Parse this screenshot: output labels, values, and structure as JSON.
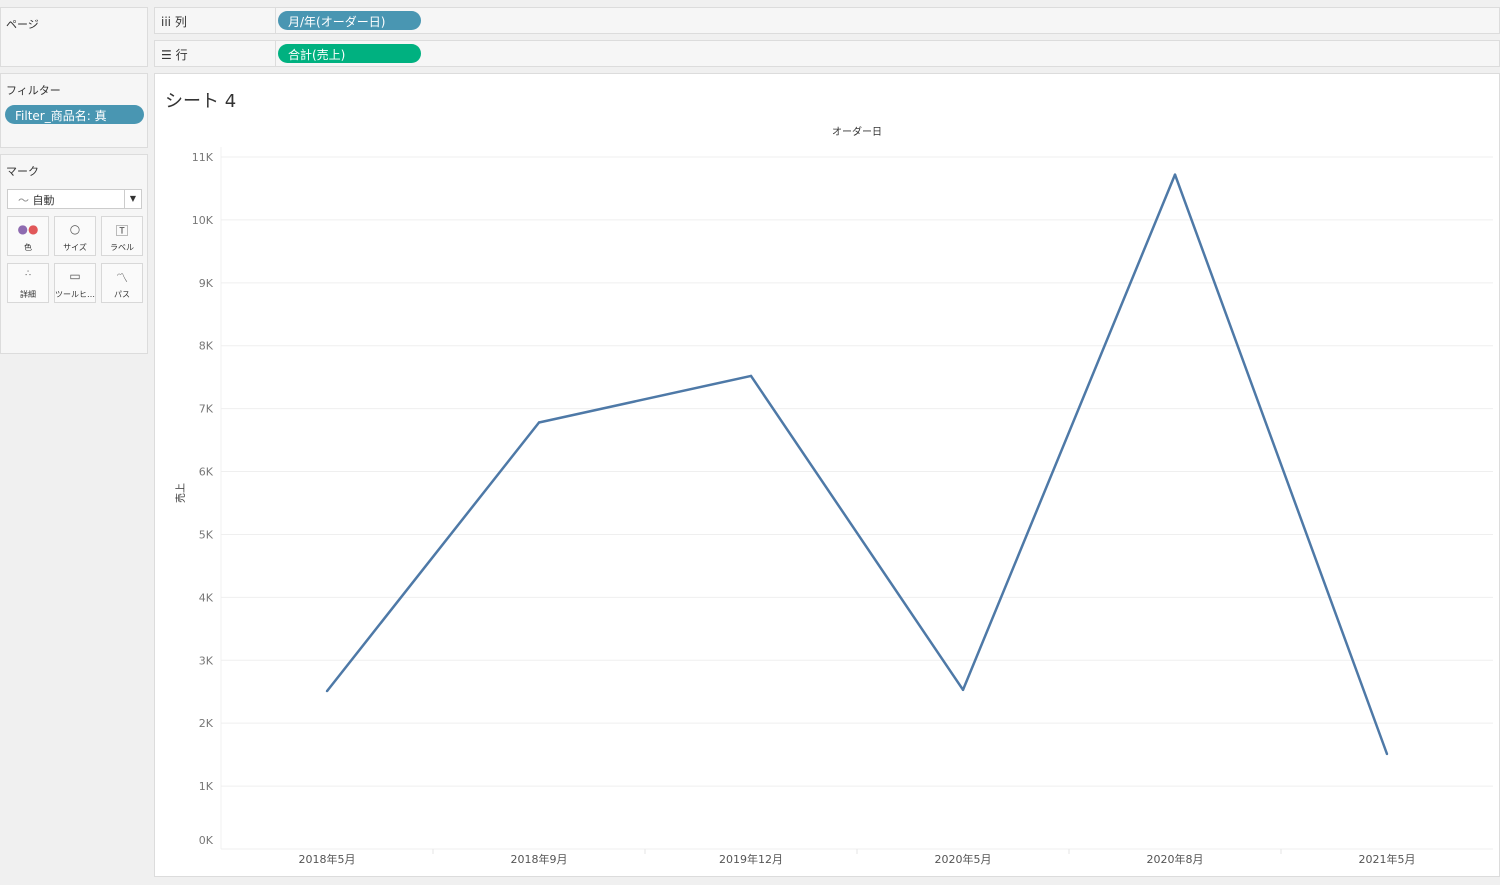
{
  "pages": {
    "title": "ページ"
  },
  "filters": {
    "title": "フィルター",
    "pill": "Filter_商品名: 真",
    "pill_color": "#4996b2"
  },
  "marks": {
    "title": "マーク",
    "type": "自動",
    "buttons": [
      {
        "label": "色",
        "icon": "color-icon"
      },
      {
        "label": "サイズ",
        "icon": "size-icon"
      },
      {
        "label": "ラベル",
        "icon": "label-icon"
      },
      {
        "label": "詳細",
        "icon": "detail-icon"
      },
      {
        "label": "ツールヒ…",
        "icon": "tooltip-icon"
      },
      {
        "label": "パス",
        "icon": "path-icon"
      }
    ]
  },
  "shelves": {
    "columns": {
      "label": "列",
      "pill": "月/年(オーダー日)",
      "color": "#4996b2"
    },
    "rows": {
      "label": "行",
      "pill": "合計(売上)",
      "color": "#00b180"
    }
  },
  "sheet": {
    "title": "シート 4"
  },
  "chart_data": {
    "type": "line",
    "title": "オーダー日",
    "xlabel": "",
    "ylabel": "売上",
    "categories": [
      "2018年5月",
      "2018年9月",
      "2019年12月",
      "2020年5月",
      "2020年8月",
      "2021年5月"
    ],
    "values": [
      2510,
      6780,
      7520,
      2530,
      10720,
      1510
    ],
    "yticks": [
      "0K",
      "1K",
      "2K",
      "3K",
      "4K",
      "5K",
      "6K",
      "7K",
      "8K",
      "9K",
      "10K",
      "11K"
    ],
    "ylim": [
      0,
      11000
    ],
    "grid": true,
    "line_color": "#4e79a7"
  }
}
